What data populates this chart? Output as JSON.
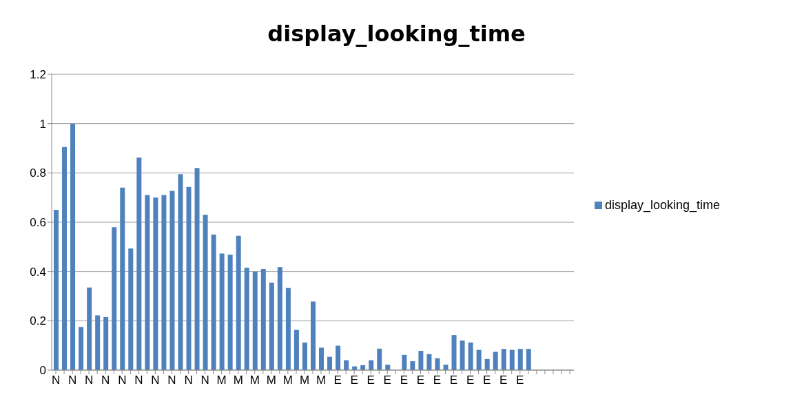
{
  "chart_data": {
    "type": "bar",
    "title": "display_looking_time",
    "categories": [
      "N",
      null,
      "N",
      null,
      "N",
      null,
      "N",
      null,
      "N",
      null,
      "N",
      null,
      "N",
      null,
      "N",
      null,
      "N",
      null,
      "N",
      null,
      "M",
      null,
      "M",
      null,
      "M",
      null,
      "M",
      null,
      "M",
      null,
      "M",
      null,
      "M",
      null,
      "E",
      null,
      "E",
      null,
      "E",
      null,
      "E",
      null,
      "E",
      null,
      "E",
      null,
      "E",
      null,
      "E",
      null,
      "E",
      null,
      "E",
      null,
      "E",
      null,
      "E",
      null,
      null,
      null,
      null,
      null,
      null
    ],
    "series": [
      {
        "name": "display_looking_time",
        "color": "#4f81bd",
        "values": [
          0.65,
          0.905,
          1.0,
          0.175,
          0.335,
          0.222,
          0.215,
          0.58,
          0.74,
          0.493,
          0.862,
          0.71,
          0.7,
          0.71,
          0.727,
          0.795,
          0.743,
          0.82,
          0.63,
          0.55,
          0.473,
          0.468,
          0.545,
          0.415,
          0.4,
          0.41,
          0.355,
          0.418,
          0.333,
          0.163,
          0.112,
          0.278,
          0.091,
          0.054,
          0.099,
          0.04,
          0.015,
          0.02,
          0.04,
          0.087,
          0.022,
          null,
          0.062,
          0.036,
          0.078,
          0.065,
          0.048,
          0.022,
          0.142,
          0.12,
          0.112,
          0.082,
          0.045,
          0.074,
          0.086,
          0.082,
          0.086,
          0.086,
          null,
          null,
          null,
          null,
          null
        ]
      }
    ],
    "ylim": [
      0,
      1.2
    ],
    "yticks": [
      0,
      0.2,
      0.4,
      0.6,
      0.8,
      1,
      1.2
    ],
    "grid": "y",
    "legend": "right"
  }
}
